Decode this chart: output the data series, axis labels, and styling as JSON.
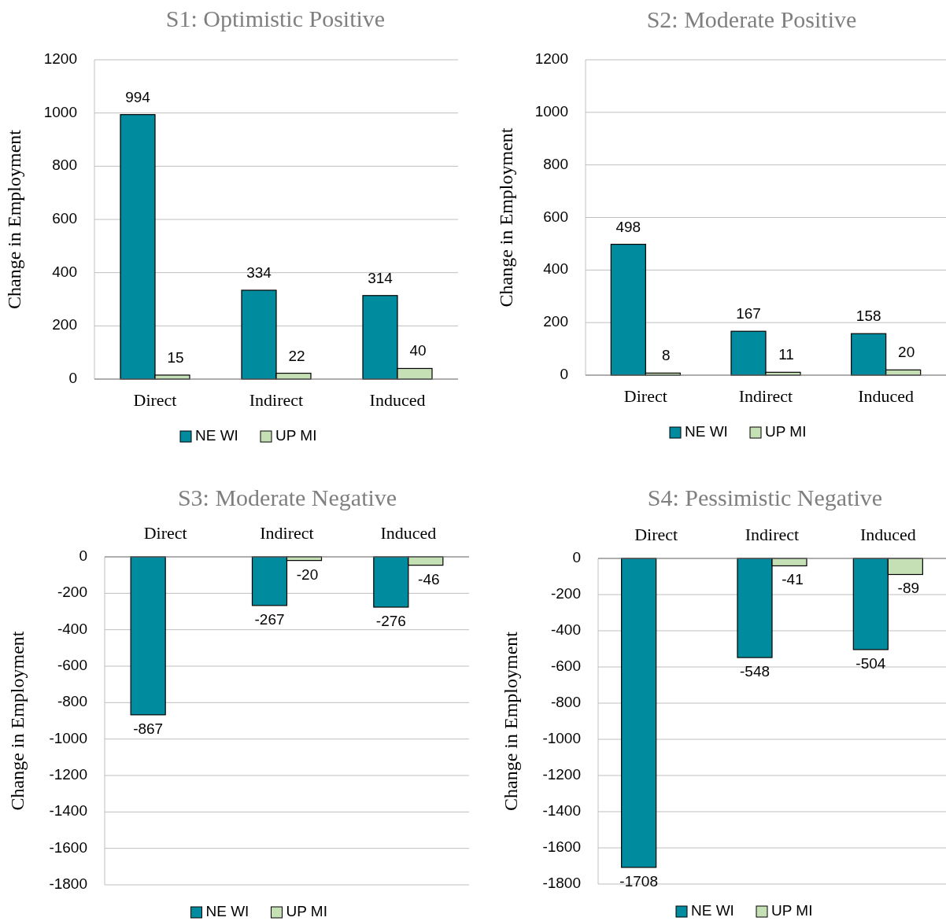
{
  "chart_data": [
    {
      "type": "bar",
      "title": "S1: Optimistic Positive",
      "ylabel": "Change in Employment",
      "categories": [
        "Direct",
        "Indirect",
        "Induced"
      ],
      "series": [
        {
          "name": "NE WI",
          "color": "#008b9e",
          "values": [
            994,
            334,
            314
          ]
        },
        {
          "name": "UP MI",
          "color": "#c5e0b4",
          "values": [
            15,
            22,
            40
          ]
        }
      ],
      "ylim": [
        0,
        1200
      ],
      "yticks": [
        0,
        200,
        400,
        600,
        800,
        1000,
        1200
      ],
      "grid": "y",
      "legend": "bottom",
      "data_labels": true
    },
    {
      "type": "bar",
      "title": "S2: Moderate Positive",
      "ylabel": "Change in Employment",
      "categories": [
        "Direct",
        "Indirect",
        "Induced"
      ],
      "series": [
        {
          "name": "NE WI",
          "color": "#008b9e",
          "values": [
            498,
            167,
            158
          ]
        },
        {
          "name": "UP MI",
          "color": "#c5e0b4",
          "values": [
            8,
            11,
            20
          ]
        }
      ],
      "ylim": [
        0,
        1200
      ],
      "yticks": [
        0,
        200,
        400,
        600,
        800,
        1000,
        1200
      ],
      "grid": "y",
      "legend": "bottom",
      "data_labels": true
    },
    {
      "type": "bar",
      "title": "S3: Moderate Negative",
      "ylabel": "Change in Employment",
      "categories": [
        "Direct",
        "Indirect",
        "Induced"
      ],
      "series": [
        {
          "name": "NE WI",
          "color": "#008b9e",
          "values": [
            -867,
            -267,
            -276
          ]
        },
        {
          "name": "UP MI",
          "color": "#c5e0b4",
          "values": [
            null,
            -20,
            -46
          ]
        }
      ],
      "ylim": [
        -1800,
        0
      ],
      "yticks": [
        -1800,
        -1600,
        -1400,
        -1200,
        -1000,
        -800,
        -600,
        -400,
        -200,
        0
      ],
      "grid": "y",
      "legend": "bottom",
      "data_labels": true
    },
    {
      "type": "bar",
      "title": "S4: Pessimistic Negative",
      "ylabel": "Change in Employment",
      "categories": [
        "Direct",
        "Indirect",
        "Induced"
      ],
      "series": [
        {
          "name": "NE WI",
          "color": "#008b9e",
          "values": [
            -1708,
            -548,
            -504
          ]
        },
        {
          "name": "UP MI",
          "color": "#c5e0b4",
          "values": [
            null,
            -41,
            -89
          ]
        }
      ],
      "ylim": [
        -1800,
        0
      ],
      "yticks": [
        -1800,
        -1600,
        -1400,
        -1200,
        -1000,
        -800,
        -600,
        -400,
        -200,
        0
      ],
      "grid": "y",
      "legend": "bottom",
      "data_labels": true
    }
  ]
}
